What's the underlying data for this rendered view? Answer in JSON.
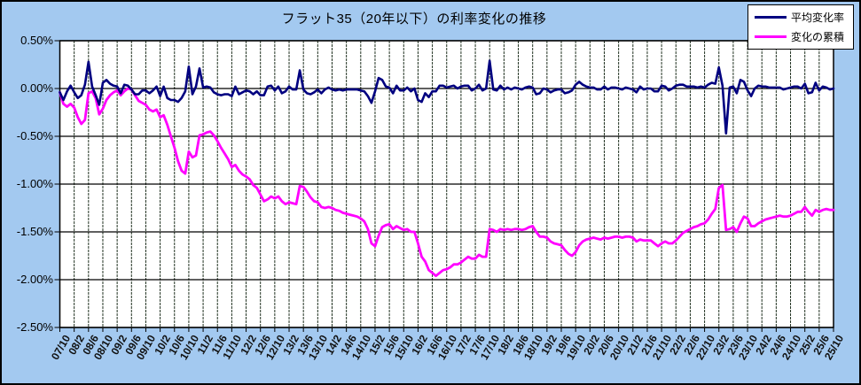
{
  "window": {
    "background_color": "#A3C9F0",
    "frame_border_color": "#000000",
    "plot_background_color": "#FFFFFF"
  },
  "title": "フラット35（20年以下）の利率変化の推移",
  "legend": {
    "position": "top-right",
    "items": [
      {
        "label": "平均変化率",
        "color": "#000080"
      },
      {
        "label": "変化の累積",
        "color": "#FF00FF"
      }
    ]
  },
  "axes": {
    "y_tick_labels": [
      "0.50%",
      "0.00%",
      "-0.50%",
      "-1.00%",
      "-1.50%",
      "-2.00%",
      "-2.50%"
    ],
    "x_first_label": "07/10",
    "x_last_label": "25/10"
  },
  "chart_data": {
    "type": "line",
    "title": "フラット35（20年以下）の利率変化の推移",
    "xlabel": "",
    "ylabel": "",
    "ylim": [
      -2.5,
      0.5
    ],
    "y_ticks": [
      0.5,
      0.0,
      -0.5,
      -1.0,
      -1.5,
      -2.0,
      -2.5
    ],
    "grid": true,
    "legend_position": "top-right",
    "x_unit": "year/month, monthly data points, one tick label every 4 months",
    "x_tick_labels": [
      "07/10",
      "08/2",
      "08/6",
      "08/10",
      "09/2",
      "09/6",
      "09/10",
      "10/2",
      "10/6",
      "10/10",
      "11/2",
      "11/6",
      "11/10",
      "12/2",
      "12/6",
      "12/10",
      "13/2",
      "13/6",
      "13/10",
      "14/2",
      "14/6",
      "14/10",
      "15/2",
      "15/6",
      "15/10",
      "16/2",
      "16/6",
      "16/10",
      "17/2",
      "17/6",
      "17/10",
      "18/2",
      "18/6",
      "18/10",
      "19/2",
      "19/6",
      "19/10",
      "20/2",
      "20/6",
      "20/10",
      "21/2",
      "21/6",
      "21/10",
      "22/2",
      "22/6",
      "22/10",
      "23/2",
      "23/6",
      "23/10",
      "24/2",
      "24/6",
      "24/10",
      "25/2",
      "25/6",
      "25/10"
    ],
    "series": [
      {
        "name": "平均変化率",
        "color": "#000080",
        "line_width": 2.6,
        "values": [
          -0.04,
          -0.12,
          -0.03,
          0.03,
          -0.04,
          -0.1,
          -0.07,
          0.04,
          0.28,
          0.02,
          -0.07,
          -0.17,
          0.06,
          0.09,
          0.05,
          0.03,
          0.02,
          -0.05,
          0.04,
          0.03,
          -0.01,
          -0.06,
          -0.06,
          -0.02,
          -0.02,
          -0.05,
          -0.02,
          0.02,
          -0.08,
          0.02,
          -0.1,
          -0.12,
          -0.12,
          -0.14,
          -0.1,
          -0.03,
          0.23,
          -0.06,
          0.02,
          0.21,
          0.01,
          0.02,
          0.01,
          -0.04,
          -0.06,
          -0.07,
          -0.06,
          -0.06,
          -0.08,
          0.02,
          -0.06,
          -0.04,
          -0.02,
          -0.03,
          -0.06,
          -0.03,
          -0.07,
          -0.07,
          0.02,
          0.03,
          -0.02,
          0.02,
          -0.05,
          -0.03,
          0.02,
          -0.01,
          -0.01,
          0.19,
          -0.01,
          -0.05,
          -0.06,
          -0.04,
          -0.01,
          -0.05,
          -0.01,
          0.01,
          -0.01,
          -0.02,
          -0.01,
          -0.02,
          -0.01,
          -0.01,
          -0.01,
          -0.01,
          -0.02,
          -0.03,
          -0.08,
          -0.15,
          -0.03,
          0.11,
          0.09,
          0.02,
          0.01,
          -0.05,
          0.03,
          -0.02,
          -0.02,
          0.01,
          -0.03,
          0.0,
          -0.12,
          -0.14,
          -0.05,
          -0.09,
          -0.03,
          -0.03,
          0.03,
          0.03,
          0.01,
          0.02,
          0.03,
          0.0,
          0.02,
          0.03,
          0.03,
          -0.02,
          0.0,
          0.04,
          -0.02,
          0.0,
          0.29,
          -0.01,
          -0.02,
          0.03,
          -0.01,
          0.01,
          -0.01,
          0.01,
          0.0,
          -0.01,
          0.01,
          0.02,
          0.01,
          -0.06,
          -0.05,
          0.0,
          -0.01,
          -0.04,
          -0.02,
          -0.01,
          -0.01,
          -0.05,
          -0.04,
          -0.02,
          0.04,
          0.07,
          0.04,
          0.02,
          0.01,
          0.01,
          -0.01,
          -0.01,
          0.02,
          -0.01,
          0.01,
          0.01,
          0.0,
          -0.01,
          0.01,
          0.0,
          -0.01,
          -0.04,
          0.02,
          -0.01,
          0.0,
          0.0,
          -0.03,
          -0.03,
          0.03,
          0.02,
          -0.02,
          0.0,
          0.03,
          0.04,
          0.04,
          0.02,
          0.02,
          0.02,
          0.01,
          0.02,
          0.01,
          0.04,
          0.06,
          0.05,
          0.22,
          0.03,
          -0.47,
          0.01,
          0.02,
          -0.05,
          0.09,
          0.07,
          -0.02,
          -0.08,
          0.0,
          0.03,
          0.02,
          0.02,
          0.01,
          0.01,
          0.01,
          0.01,
          -0.01,
          0.0,
          0.01,
          0.02,
          0.02,
          0.0,
          0.05,
          -0.05,
          -0.04,
          0.06,
          -0.02,
          0.02,
          0.01,
          -0.01,
          0.0
        ]
      },
      {
        "name": "変化の累積",
        "color": "#FF00FF",
        "line_width": 2.8,
        "values": [
          -0.04,
          -0.16,
          -0.19,
          -0.16,
          -0.2,
          -0.3,
          -0.37,
          -0.33,
          -0.05,
          -0.03,
          -0.1,
          -0.27,
          -0.21,
          -0.12,
          -0.07,
          -0.04,
          -0.02,
          -0.07,
          -0.03,
          0.0,
          -0.01,
          -0.07,
          -0.13,
          -0.15,
          -0.17,
          -0.22,
          -0.24,
          -0.22,
          -0.3,
          -0.28,
          -0.38,
          -0.5,
          -0.62,
          -0.76,
          -0.86,
          -0.89,
          -0.66,
          -0.72,
          -0.7,
          -0.49,
          -0.48,
          -0.46,
          -0.45,
          -0.49,
          -0.55,
          -0.62,
          -0.68,
          -0.74,
          -0.82,
          -0.8,
          -0.86,
          -0.9,
          -0.92,
          -0.95,
          -1.01,
          -1.04,
          -1.11,
          -1.18,
          -1.16,
          -1.13,
          -1.15,
          -1.13,
          -1.18,
          -1.21,
          -1.19,
          -1.2,
          -1.21,
          -1.02,
          -1.03,
          -1.08,
          -1.14,
          -1.18,
          -1.19,
          -1.24,
          -1.25,
          -1.24,
          -1.25,
          -1.27,
          -1.28,
          -1.3,
          -1.31,
          -1.32,
          -1.33,
          -1.34,
          -1.36,
          -1.39,
          -1.47,
          -1.62,
          -1.65,
          -1.54,
          -1.45,
          -1.43,
          -1.42,
          -1.47,
          -1.44,
          -1.46,
          -1.48,
          -1.47,
          -1.5,
          -1.5,
          -1.62,
          -1.76,
          -1.81,
          -1.9,
          -1.93,
          -1.96,
          -1.93,
          -1.9,
          -1.89,
          -1.87,
          -1.84,
          -1.84,
          -1.82,
          -1.79,
          -1.76,
          -1.78,
          -1.78,
          -1.74,
          -1.76,
          -1.76,
          -1.47,
          -1.48,
          -1.5,
          -1.47,
          -1.48,
          -1.47,
          -1.48,
          -1.47,
          -1.47,
          -1.48,
          -1.47,
          -1.45,
          -1.44,
          -1.5,
          -1.55,
          -1.55,
          -1.56,
          -1.6,
          -1.62,
          -1.63,
          -1.64,
          -1.69,
          -1.73,
          -1.75,
          -1.71,
          -1.64,
          -1.6,
          -1.58,
          -1.57,
          -1.56,
          -1.57,
          -1.58,
          -1.56,
          -1.57,
          -1.56,
          -1.55,
          -1.55,
          -1.56,
          -1.55,
          -1.55,
          -1.56,
          -1.6,
          -1.58,
          -1.59,
          -1.59,
          -1.59,
          -1.62,
          -1.65,
          -1.62,
          -1.6,
          -1.62,
          -1.62,
          -1.59,
          -1.55,
          -1.51,
          -1.49,
          -1.47,
          -1.45,
          -1.44,
          -1.42,
          -1.41,
          -1.37,
          -1.31,
          -1.26,
          -1.04,
          -1.01,
          -1.48,
          -1.47,
          -1.45,
          -1.5,
          -1.41,
          -1.34,
          -1.36,
          -1.44,
          -1.44,
          -1.41,
          -1.39,
          -1.37,
          -1.36,
          -1.35,
          -1.34,
          -1.33,
          -1.34,
          -1.34,
          -1.33,
          -1.31,
          -1.29,
          -1.29,
          -1.24,
          -1.29,
          -1.33,
          -1.27,
          -1.29,
          -1.27,
          -1.26,
          -1.27,
          -1.27
        ]
      }
    ]
  }
}
